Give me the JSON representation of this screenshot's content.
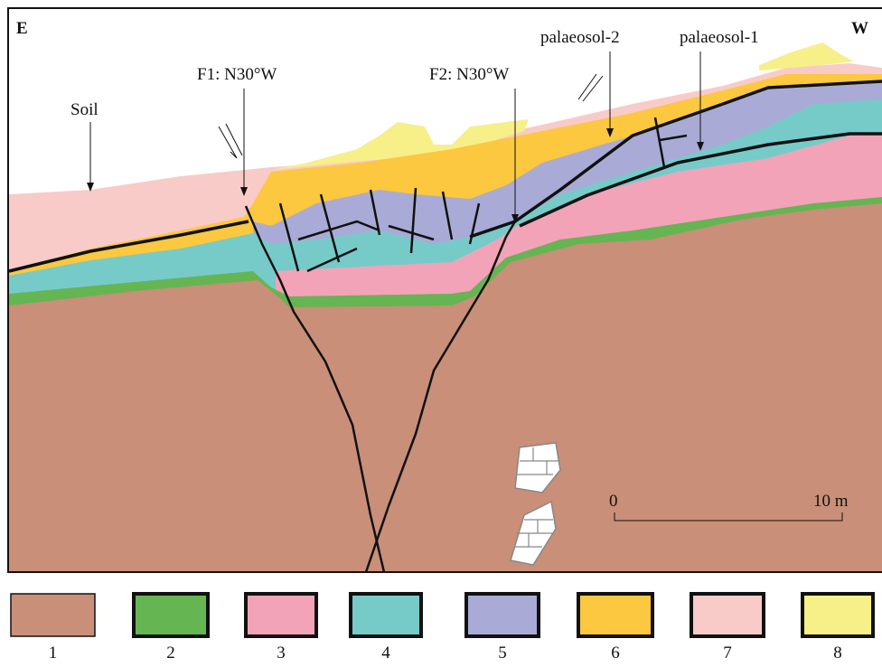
{
  "header": {
    "east": "E",
    "west": "W"
  },
  "labels": {
    "soil": "Soil",
    "f1": "F1: N30°W",
    "f2": "F2: N30°W",
    "palaeosol_2": "palaeosol-2",
    "palaeosol_1": "palaeosol-1"
  },
  "scale_bar": {
    "start": "0",
    "end": "10 m"
  },
  "legend": [
    {
      "label": "1",
      "color": "#c98f78"
    },
    {
      "label": "2",
      "color": "#65b552"
    },
    {
      "label": "3",
      "color": "#f2a3b8"
    },
    {
      "label": "4",
      "color": "#76cbc9"
    },
    {
      "label": "5",
      "color": "#a9abd6"
    },
    {
      "label": "6",
      "color": "#fbc83f"
    },
    {
      "label": "7",
      "color": "#f8cbc8"
    },
    {
      "label": "8",
      "color": "#f7ef87"
    }
  ]
}
